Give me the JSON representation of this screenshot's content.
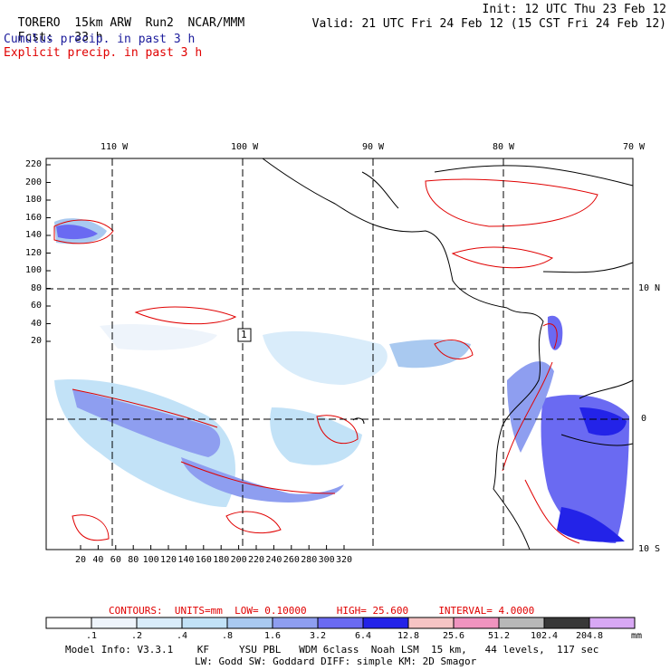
{
  "header": {
    "model": "TORERO",
    "resolution": "15km ARW",
    "run": "Run2",
    "org": "NCAR/MMM",
    "init": "Init: 12 UTC Thu 23 Feb 12",
    "fcst_label": "Fcst:",
    "fcst_value": "33 h",
    "valid": "Valid: 21 UTC Fri 24 Feb 12 (15 CST Fri 24 Feb 12)",
    "cumulus_label": "Cumulus precip. in past 3 h",
    "explicit_label": "Explicit precip. in past 3 h"
  },
  "axes": {
    "lon_labels": [
      "110 W",
      "100 W",
      "90 W",
      "80 W",
      "70 W"
    ],
    "lat_labels": [
      "10 N",
      "0",
      "10 S"
    ],
    "y_ticks": [
      "220",
      "200",
      "180",
      "160",
      "140",
      "120",
      "100",
      "80",
      "60",
      "40",
      "20"
    ],
    "x_ticks": [
      "20",
      "40",
      "60",
      "80",
      "100",
      "120",
      "140",
      "160",
      "180",
      "200",
      "220",
      "240",
      "260",
      "280",
      "300",
      "320"
    ],
    "station_marker": "1"
  },
  "contours": {
    "label": "CONTOURS:",
    "units": "UNITS=mm",
    "low": "LOW= 0.10000",
    "high": "HIGH= 25.600",
    "interval": "INTERVAL= 4.0000"
  },
  "colorbar": {
    "labels": [
      ".1",
      ".2",
      ".4",
      ".8",
      "1.6",
      "3.2",
      "6.4",
      "12.8",
      "25.6",
      "51.2",
      "102.4",
      "204.8"
    ],
    "unit": "mm",
    "colors": [
      "#ffffff",
      "#eef4fb",
      "#d9ecfa",
      "#c2e2f7",
      "#a9c9f0",
      "#8e9ef0",
      "#6a6af2",
      "#2323e8",
      "#f6c4c4",
      "#f094bf",
      "#b8b8b8",
      "#383838",
      "#d8a8f4"
    ]
  },
  "footer": {
    "line1": "Model Info: V3.3.1    KF     YSU PBL   WDM 6class  Noah LSM  15 km,   44 levels,  117 sec",
    "line2": "LW: Godd SW: Goddard DIFF: simple KM: 2D Smagor"
  }
}
